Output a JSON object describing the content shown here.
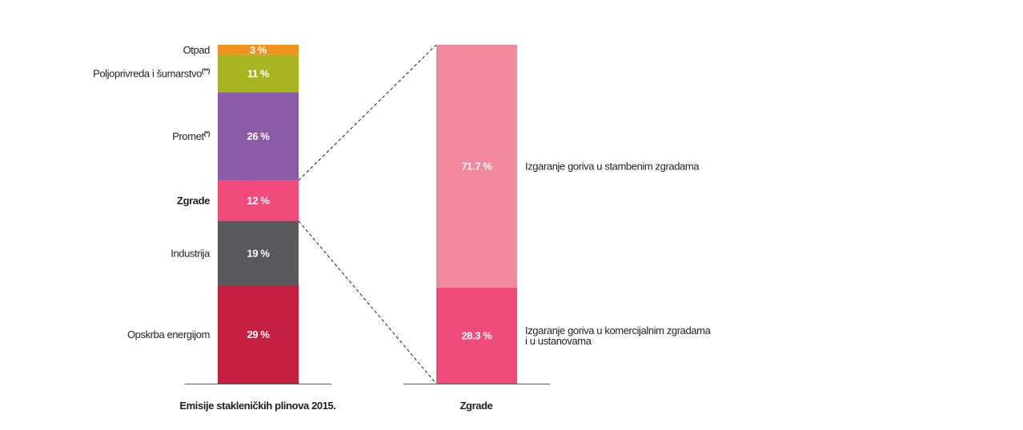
{
  "chart_data": [
    {
      "type": "bar",
      "stacked": true,
      "title": "Emisije stakleničkih plinova 2015.",
      "unit": "%",
      "ylim": [
        0,
        100
      ],
      "grid": false,
      "segments": [
        {
          "name": "Opskrba energijom",
          "value": 29,
          "label": "29 %",
          "color": "#c41f41",
          "bold": false
        },
        {
          "name": "Industrija",
          "value": 19,
          "label": "19 %",
          "color": "#59585c",
          "bold": false
        },
        {
          "name": "Zgrade",
          "value": 12,
          "label": "12 %",
          "color": "#ef4c7b",
          "bold": true
        },
        {
          "name": "Promet",
          "sup": "(*)",
          "value": 26,
          "label": "26 %",
          "color": "#8a5ba6",
          "bold": false
        },
        {
          "name": "Poljoprivreda i šumarstvo",
          "sup": "(**)",
          "value": 11,
          "label": "11 %",
          "color": "#a8b521",
          "bold": false
        },
        {
          "name": "Otpad",
          "value": 3,
          "label": "3 %",
          "color": "#f0921e",
          "bold": false
        }
      ]
    },
    {
      "type": "bar",
      "stacked": true,
      "title": "Zgrade",
      "unit": "%",
      "ylim": [
        0,
        100
      ],
      "grid": false,
      "segments": [
        {
          "name": [
            "Izgaranje goriva u komercijalnim zgradama",
            "i u ustanovama"
          ],
          "value": 28.3,
          "label": "28.3 %",
          "color": "#ef4c7b"
        },
        {
          "name": [
            "Izgaranje goriva u stambenim zgradama"
          ],
          "value": 71.7,
          "label": "71.7 %",
          "color": "#f2899c"
        }
      ]
    }
  ]
}
